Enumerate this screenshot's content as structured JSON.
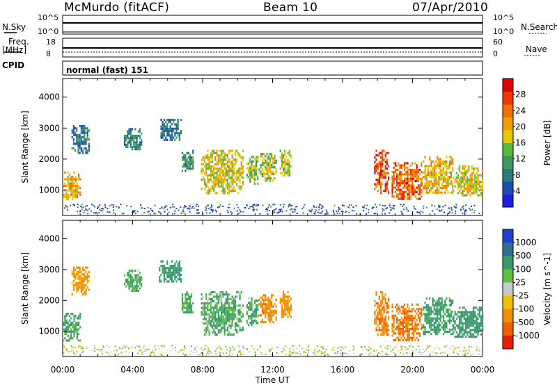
{
  "header": {
    "station": "McMurdo (fitACF)",
    "beam": "Beam 10",
    "date": "07/Apr/2010"
  },
  "top_panels": {
    "nsky_label": "N.Sky",
    "nsearch_label": "N.Search",
    "nsky_ticks": [
      "10^5",
      "10^0"
    ],
    "nsearch_ticks": [
      "10^5",
      "10^0"
    ],
    "freq_label": "Freq.",
    "freq_unit": "[MHz]",
    "freq_ticks": [
      "18",
      "8"
    ],
    "nave_label": "Nave",
    "nave_ticks": [
      "60",
      "0"
    ],
    "cpid_label": "CPID",
    "cpid_value": "normal (fast) 151"
  },
  "chart_data": [
    {
      "type": "heatmap",
      "title": "",
      "xlabel": "Time UT",
      "ylabel": "Slant Range [km]",
      "x_ticks": [
        "00:00",
        "04:00",
        "08:00",
        "12:00",
        "16:00",
        "20:00",
        "00:00"
      ],
      "y_ticks": [
        1000,
        2000,
        3000,
        4000
      ],
      "xlim_hours": [
        0,
        24
      ],
      "ylim_km": [
        180,
        4600
      ],
      "colorbar": {
        "label": "Power [dB]",
        "ticks": [
          4,
          8,
          12,
          16,
          20,
          24,
          28
        ],
        "colors": [
          "#1f1fe0",
          "#1f4fb0",
          "#2f7a7a",
          "#3a9a60",
          "#5cb83a",
          "#e8c800",
          "#f0a000",
          "#f07000",
          "#f03800",
          "#e00000"
        ]
      },
      "echo_regions": [
        {
          "t": [
            0.0,
            1.0
          ],
          "range": [
            700,
            1600
          ],
          "value": 20
        },
        {
          "t": [
            0.5,
            1.5
          ],
          "range": [
            2200,
            3100
          ],
          "value": 8
        },
        {
          "t": [
            3.5,
            4.5
          ],
          "range": [
            2300,
            3000
          ],
          "value": 8
        },
        {
          "t": [
            5.5,
            6.8
          ],
          "range": [
            2600,
            3300
          ],
          "value": 8
        },
        {
          "t": [
            6.8,
            7.5
          ],
          "range": [
            1600,
            2300
          ],
          "value": 10
        },
        {
          "t": [
            7.9,
            10.3
          ],
          "range": [
            900,
            2300
          ],
          "value": 18
        },
        {
          "t": [
            10.5,
            11.2
          ],
          "range": [
            1200,
            2100
          ],
          "value": 14
        },
        {
          "t": [
            11.2,
            12.2
          ],
          "range": [
            1300,
            2200
          ],
          "value": 16
        },
        {
          "t": [
            12.4,
            13.1
          ],
          "range": [
            1500,
            2300
          ],
          "value": 15
        },
        {
          "t": [
            17.8,
            18.6
          ],
          "range": [
            900,
            2300
          ],
          "value": 26
        },
        {
          "t": [
            18.8,
            20.5
          ],
          "range": [
            700,
            1900
          ],
          "value": 25
        },
        {
          "t": [
            20.5,
            22.3
          ],
          "range": [
            900,
            2100
          ],
          "value": 20
        },
        {
          "t": [
            22.3,
            24.0
          ],
          "range": [
            800,
            1800
          ],
          "value": 18
        }
      ]
    },
    {
      "type": "heatmap",
      "title": "",
      "xlabel": "Time UT",
      "ylabel": "Slant Range [km]",
      "x_ticks": [
        "00:00",
        "04:00",
        "08:00",
        "12:00",
        "16:00",
        "20:00",
        "00:00"
      ],
      "y_ticks": [
        1000,
        2000,
        3000,
        4000
      ],
      "xlim_hours": [
        0,
        24
      ],
      "ylim_km": [
        180,
        4600
      ],
      "colorbar": {
        "label": "Velocity [m s^-1]",
        "ticks": [
          1000,
          500,
          100,
          25,
          -25,
          -100,
          -500,
          -1000
        ],
        "colors": [
          "#1f3fd0",
          "#2f6f8f",
          "#3a9a6a",
          "#5cc040",
          "#c8c8c8",
          "#f0c000",
          "#f09000",
          "#f06000",
          "#e82000"
        ]
      },
      "echo_regions": [
        {
          "t": [
            0.0,
            1.0
          ],
          "range": [
            700,
            1600
          ],
          "value": 150
        },
        {
          "t": [
            0.5,
            1.5
          ],
          "range": [
            2200,
            3100
          ],
          "value": -200
        },
        {
          "t": [
            3.5,
            4.5
          ],
          "range": [
            2300,
            3000
          ],
          "value": 120
        },
        {
          "t": [
            5.5,
            6.8
          ],
          "range": [
            2600,
            3300
          ],
          "value": 300
        },
        {
          "t": [
            6.8,
            7.5
          ],
          "range": [
            1600,
            2300
          ],
          "value": 150
        },
        {
          "t": [
            7.9,
            10.3
          ],
          "range": [
            900,
            2300
          ],
          "value": 120
        },
        {
          "t": [
            10.5,
            11.2
          ],
          "range": [
            1200,
            2100
          ],
          "value": 130
        },
        {
          "t": [
            11.2,
            12.2
          ],
          "range": [
            1300,
            2200
          ],
          "value": -400
        },
        {
          "t": [
            12.4,
            13.1
          ],
          "range": [
            1500,
            2300
          ],
          "value": -350
        },
        {
          "t": [
            17.8,
            18.6
          ],
          "range": [
            900,
            2300
          ],
          "value": -450
        },
        {
          "t": [
            18.8,
            20.5
          ],
          "range": [
            700,
            1900
          ],
          "value": -500
        },
        {
          "t": [
            20.5,
            22.3
          ],
          "range": [
            900,
            2100
          ],
          "value": 200
        },
        {
          "t": [
            22.3,
            24.0
          ],
          "range": [
            800,
            1800
          ],
          "value": 300
        }
      ]
    }
  ]
}
